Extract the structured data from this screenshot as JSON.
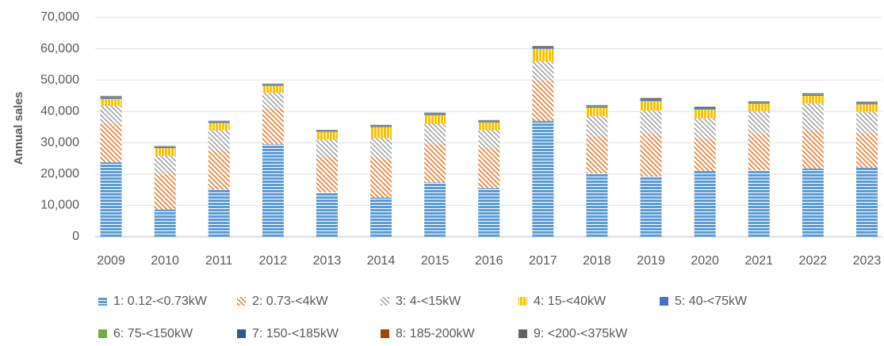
{
  "chart_data": {
    "type": "stacked_bar",
    "y_label": "Annual sales",
    "categories": [
      "2009",
      "2010",
      "2011",
      "2012",
      "2013",
      "2014",
      "2015",
      "2016",
      "2017",
      "2018",
      "2019",
      "2020",
      "2021",
      "2022",
      "2023"
    ],
    "ylim": [
      0,
      70000
    ],
    "yticks": [
      0,
      {
        "value": 10000,
        "label": "10,000"
      },
      {
        "value": 20000,
        "label": "20,000"
      },
      {
        "value": 30000,
        "label": "30,000"
      },
      {
        "value": 40000,
        "label": "40,000"
      },
      {
        "value": 50000,
        "label": "50,000"
      },
      {
        "value": 60000,
        "label": "60,000"
      },
      {
        "value": 70000,
        "label": "70,000"
      }
    ],
    "grid": true,
    "legend": "bottom",
    "series": [
      {
        "name": "1: 0.12-<0.73kW",
        "color": "#5b9bd5",
        "hatch": "horizontal",
        "values": [
          23800,
          8700,
          15000,
          29500,
          14200,
          12500,
          17300,
          15500,
          37000,
          20200,
          19300,
          21000,
          21200,
          21800,
          22000
        ]
      },
      {
        "name": "2: 0.73-<4kW",
        "color": "#ed7d31",
        "hatch": "diagonal",
        "values": [
          12200,
          11500,
          12500,
          11500,
          11300,
          12500,
          12200,
          13000,
          12800,
          11800,
          13500,
          10300,
          11600,
          12200,
          11000
        ]
      },
      {
        "name": "3: 4-<15kW",
        "color": "#a5a5a5",
        "hatch": "diagonal",
        "values": [
          5800,
          5600,
          6500,
          5000,
          5500,
          6500,
          6500,
          5500,
          6200,
          6500,
          7500,
          6500,
          7200,
          8500,
          6800
        ]
      },
      {
        "name": "4: 15-<40kW",
        "color": "#ffc000",
        "hatch": "vertical",
        "values": [
          2200,
          2500,
          2300,
          2200,
          2500,
          3500,
          2800,
          2500,
          4000,
          2700,
          3000,
          2800,
          2500,
          2500,
          2500
        ]
      },
      {
        "name": "5: 40-<75kW",
        "color": "#4472c4",
        "hatch": "solid",
        "values": [
          400,
          300,
          300,
          300,
          300,
          300,
          300,
          300,
          400,
          300,
          400,
          300,
          300,
          300,
          300
        ]
      },
      {
        "name": "6: 75-<150kW",
        "color": "#70ad47",
        "hatch": "solid",
        "values": [
          150,
          100,
          150,
          100,
          100,
          100,
          150,
          100,
          150,
          150,
          150,
          150,
          150,
          150,
          150
        ]
      },
      {
        "name": "7: 150-<185kW",
        "color": "#255e91",
        "hatch": "solid",
        "values": [
          150,
          100,
          100,
          100,
          100,
          100,
          150,
          100,
          150,
          150,
          150,
          150,
          150,
          150,
          150
        ]
      },
      {
        "name": "8: 185-200kW",
        "color": "#9e480e",
        "hatch": "solid",
        "values": [
          50,
          50,
          50,
          50,
          50,
          50,
          50,
          50,
          50,
          50,
          50,
          50,
          50,
          50,
          50
        ]
      },
      {
        "name": "9: <200-<375kW",
        "color": "#636363",
        "hatch": "solid",
        "values": [
          150,
          100,
          100,
          100,
          50,
          150,
          150,
          150,
          150,
          150,
          250,
          250,
          50,
          150,
          150
        ]
      }
    ]
  }
}
